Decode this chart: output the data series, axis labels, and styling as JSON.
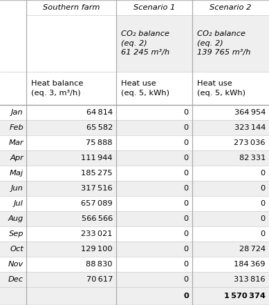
{
  "col_headers": [
    "Southern farm",
    "Scenario 1",
    "Scenario 2"
  ],
  "months": [
    "Jan",
    "Feb",
    "Mar",
    "Apr",
    "Maj",
    "Jun",
    "Jul",
    "Aug",
    "Sep",
    "Oct",
    "Nov",
    "Dec"
  ],
  "col1": [
    "64 814",
    "65 582",
    "75 888",
    "111 944",
    "185 275",
    "317 516",
    "657 089",
    "566 566",
    "233 021",
    "129 100",
    "88 830",
    "70 617"
  ],
  "col2": [
    "0",
    "0",
    "0",
    "0",
    "0",
    "0",
    "0",
    "0",
    "0",
    "0",
    "0",
    "0"
  ],
  "col3": [
    "364 954",
    "323 144",
    "273 036",
    "82 331",
    "0",
    "0",
    "0",
    "0",
    "0",
    "28 724",
    "184 369",
    "313 816"
  ],
  "total_col2": "0",
  "total_col3": "1 570 374",
  "co2_lines_s1": [
    "CO₂ balance",
    "(eq. 2)",
    "61 245 m³/h"
  ],
  "co2_lines_s2": [
    "CO₂ balance",
    "(eq. 2)",
    "139 765 m³/h"
  ],
  "heat_bal_lines": [
    "Heat balance",
    "(eq. 3, m³/h)"
  ],
  "heat_use_lines": [
    "Heat use",
    "(eq. 5, kWh)"
  ],
  "bg_light": "#efefef",
  "bg_white": "#ffffff",
  "line_color": "#cccccc",
  "line_color_dark": "#aaaaaa",
  "text_color": "#000000",
  "fs": 8.2
}
